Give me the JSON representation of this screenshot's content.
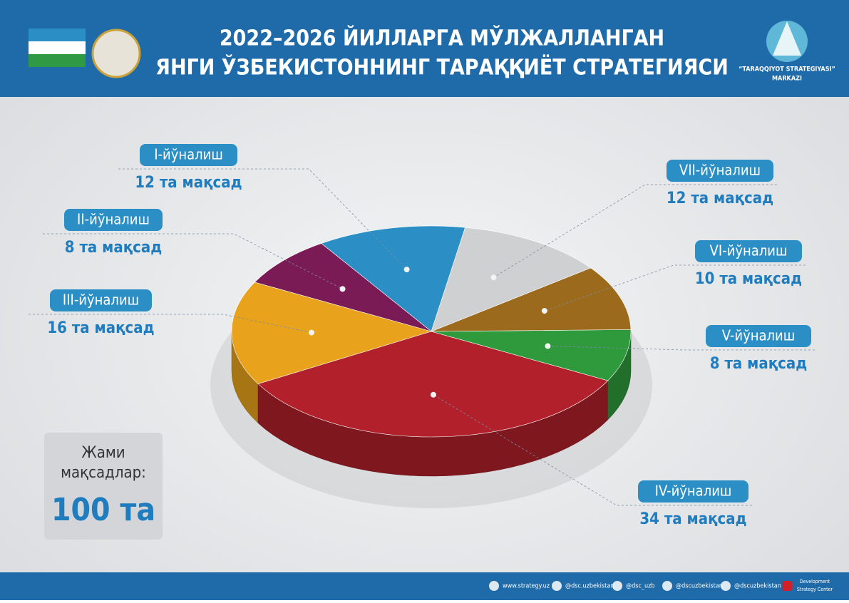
{
  "header": {
    "title_lines": [
      "2022–2026 ЙИЛЛАРГА МЎЛЖАЛЛАНГАН",
      "ЯНГИ ЎЗБЕКИСТОННИНГ ТАРАҚҚИЁТ СТРАТЕГИЯСИ"
    ],
    "logo_lines": [
      "“TARAQQIYOT STRATEGIYASI”",
      "MARKAZI"
    ]
  },
  "chart_data": {
    "type": "pie",
    "categories": [
      "I-йўналиш",
      "II-йўналиш",
      "III-йўналиш",
      "IV-йўналиш",
      "V-йўналиш",
      "VI-йўналиш",
      "VII-йўналиш"
    ],
    "values": [
      12,
      8,
      16,
      34,
      8,
      10,
      12
    ],
    "value_labels": [
      "12 та мақсад",
      "8 та мақсад",
      "16 та мақсад",
      "34 та мақсад",
      "8 та мақсад",
      "10 та мақсад",
      "12 та мақсад"
    ],
    "colors": [
      "#2b8fc6",
      "#7b1b56",
      "#e8a21c",
      "#b1202b",
      "#2f9a3c",
      "#9b6a1c",
      "#cfd0d2"
    ]
  },
  "total": {
    "label_lines": [
      "Жами",
      "мақсадлар:"
    ],
    "value_label": "100 та"
  },
  "footer": {
    "links": [
      "www.strategy.uz",
      "@dsc.uzbekistan",
      "@dsc_uzb",
      "@dscuzbekistan",
      "@dscuzbekistan"
    ],
    "brand_lines": [
      "Development",
      "Strategy Center"
    ]
  }
}
